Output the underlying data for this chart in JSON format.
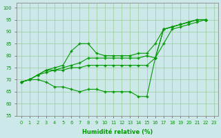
{
  "xlabel": "Humidité relative (%)",
  "xlim": [
    -0.5,
    23.5
  ],
  "ylim": [
    55,
    102
  ],
  "yticks": [
    55,
    60,
    65,
    70,
    75,
    80,
    85,
    90,
    95,
    100
  ],
  "xticks": [
    0,
    1,
    2,
    3,
    4,
    5,
    6,
    7,
    8,
    9,
    10,
    11,
    12,
    13,
    14,
    15,
    16,
    17,
    18,
    19,
    20,
    21,
    22,
    23
  ],
  "bg_color": "#cce8e8",
  "grid_color": "#99cc99",
  "line_color": "#009900",
  "lines": [
    [
      69,
      70,
      72,
      74,
      75,
      76,
      82,
      85,
      85,
      81,
      80,
      80,
      80,
      80,
      81,
      81,
      85,
      91,
      92,
      93,
      94,
      95,
      95
    ],
    [
      69,
      70,
      72,
      74,
      74,
      75,
      76,
      77,
      79,
      79,
      79,
      79,
      79,
      79,
      79,
      80,
      79,
      91,
      92,
      93,
      94,
      95,
      95
    ],
    [
      69,
      70,
      72,
      73,
      74,
      74,
      75,
      75,
      76,
      76,
      76,
      76,
      76,
      76,
      76,
      76,
      79,
      91,
      92,
      93,
      94,
      95,
      95
    ],
    [
      69,
      70,
      70,
      69,
      67,
      67,
      66,
      65,
      66,
      66,
      65,
      65,
      65,
      65,
      63,
      63,
      79,
      85,
      91,
      92,
      93,
      94,
      95
    ]
  ]
}
